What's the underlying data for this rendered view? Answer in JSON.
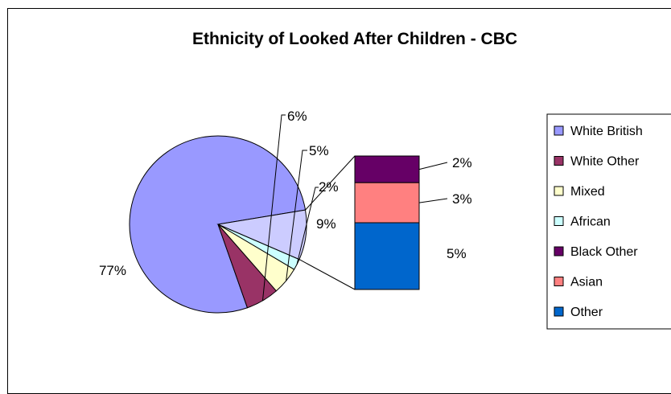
{
  "chart_data": {
    "type": "pie",
    "subtype": "pie-of-bar",
    "title": "Ethnicity of Looked After Children - CBC",
    "slices": [
      {
        "name": "White British",
        "value": 77,
        "label": "77%",
        "color": "#9999ff"
      },
      {
        "name": "White Other",
        "value": 6,
        "label": "6%",
        "color": "#993366"
      },
      {
        "name": "Mixed",
        "value": 5,
        "label": "5%",
        "color": "#ffffcc"
      },
      {
        "name": "African",
        "value": 2,
        "label": "2%",
        "color": "#ccffff"
      },
      {
        "name": "Other (combined)",
        "value": 9,
        "label": "9%",
        "color": "#ccccff"
      }
    ],
    "bar_breakdown": [
      {
        "name": "Black Other",
        "value": 2,
        "label": "2%",
        "color": "#660066"
      },
      {
        "name": "Asian",
        "value": 3,
        "label": "3%",
        "color": "#ff8080"
      },
      {
        "name": "Other",
        "value": 5,
        "label": "5%",
        "color": "#0066cc"
      }
    ],
    "legend": {
      "placement": "right",
      "entries": [
        {
          "label": "White British",
          "color": "#9999ff"
        },
        {
          "label": "White Other",
          "color": "#993366"
        },
        {
          "label": "Mixed",
          "color": "#ffffcc"
        },
        {
          "label": "African",
          "color": "#ccffff"
        },
        {
          "label": "Black Other",
          "color": "#660066"
        },
        {
          "label": "Asian",
          "color": "#ff8080"
        },
        {
          "label": "Other",
          "color": "#0066cc"
        }
      ]
    }
  }
}
